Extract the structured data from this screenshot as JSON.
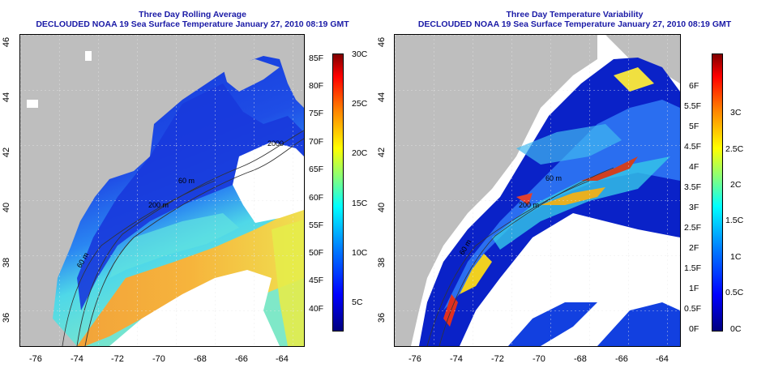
{
  "left_panel": {
    "title_line1": "Three Day Rolling Average",
    "title_line2": "DECLOUDED NOAA 19 Sea Surface Temperature January 27, 2010 08:19 GMT",
    "x_ticks": [
      "-76",
      "-74",
      "-72",
      "-70",
      "-68",
      "-66",
      "-64"
    ],
    "y_ticks": [
      "46",
      "44",
      "42",
      "40",
      "38",
      "36"
    ],
    "colorbar_f": [
      "85F",
      "80F",
      "75F",
      "70F",
      "65F",
      "60F",
      "55F",
      "50F",
      "45F",
      "40F"
    ],
    "colorbar_c": [
      "30C",
      "25C",
      "20C",
      "15C",
      "10C",
      "5C"
    ],
    "contour_labels": [
      "2000",
      "200 m",
      "60 m",
      "60 m"
    ]
  },
  "right_panel": {
    "title_line1": "Three Day Temperature Variability",
    "title_line2": "DECLOUDED NOAA 19 Sea Surface Temperature January 27, 2010 08:19 GMT",
    "x_ticks": [
      "-76",
      "-74",
      "-72",
      "-70",
      "-68",
      "-66",
      "-64"
    ],
    "y_ticks": [
      "46",
      "44",
      "42",
      "40",
      "38",
      "36"
    ],
    "colorbar_f": [
      "6F",
      "5.5F",
      "5F",
      "4.5F",
      "4F",
      "3.5F",
      "3F",
      "2.5F",
      "2F",
      "1.5F",
      "1F",
      "0.5F",
      "0F"
    ],
    "colorbar_c": [
      "3C",
      "2.5C",
      "2C",
      "1.5C",
      "1C",
      "0.5C",
      "0C"
    ],
    "contour_labels": [
      "200 m",
      "60 m",
      "60 m"
    ]
  },
  "colors": {
    "title": "#1a1aa6",
    "land": "#bebebe",
    "cloud": "#ffffff"
  }
}
